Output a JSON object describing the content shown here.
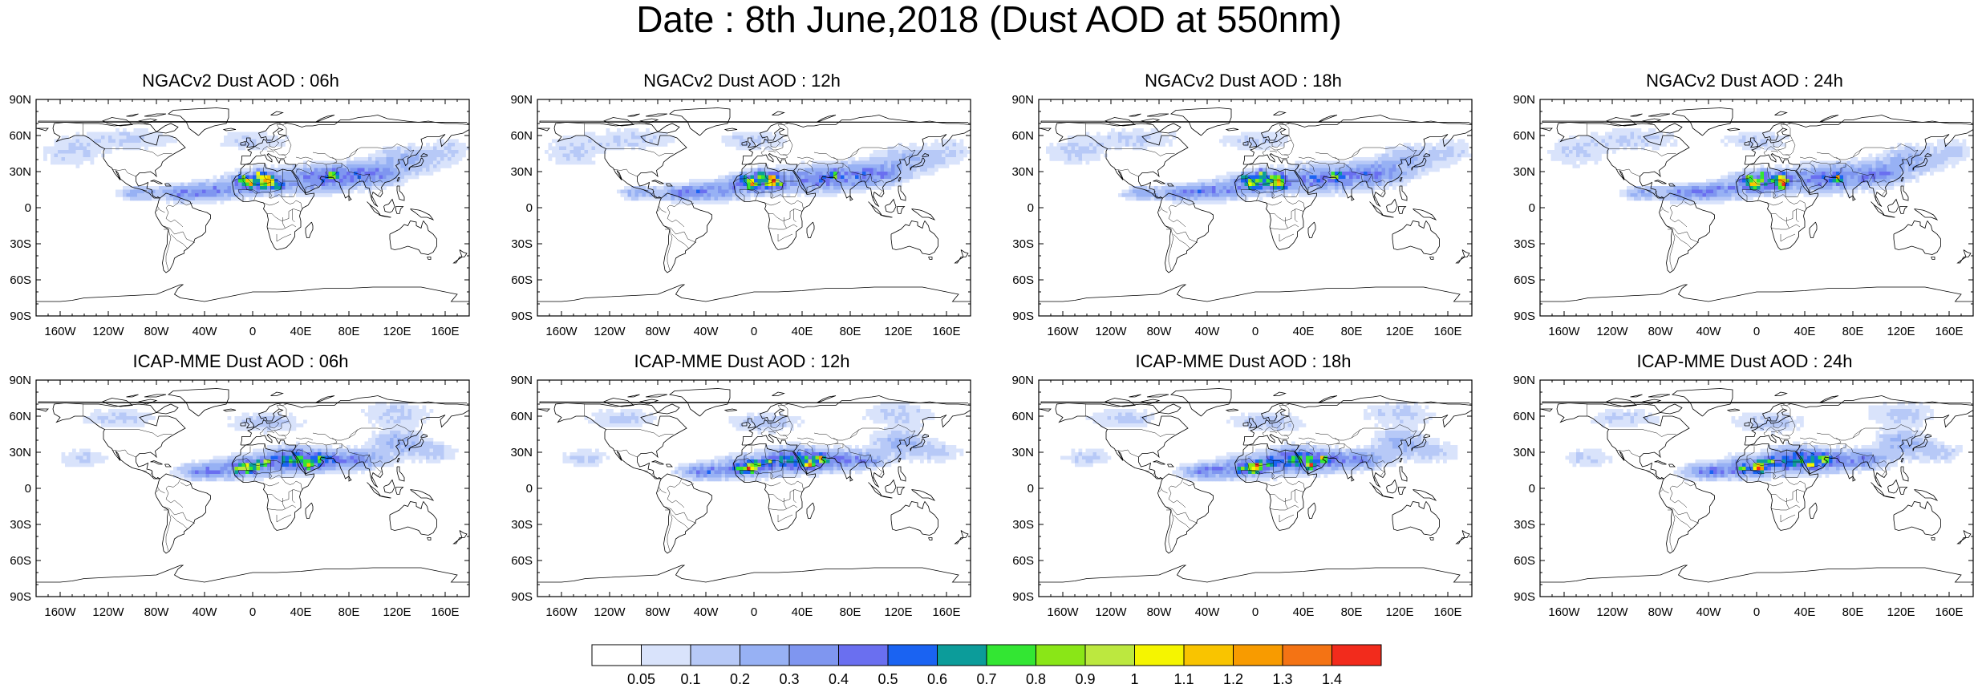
{
  "title": "Date : 8th June,2018 (Dust AOD at 550nm)",
  "lat_labels": [
    "90N",
    "60N",
    "30N",
    "0",
    "30S",
    "60S",
    "90S"
  ],
  "lon_labels": [
    "160W",
    "120W",
    "80W",
    "40W",
    "0",
    "40E",
    "80E",
    "120E",
    "160E"
  ],
  "panels": [
    {
      "title": "NGACv2 Dust AOD : 06h"
    },
    {
      "title": "NGACv2 Dust AOD : 12h"
    },
    {
      "title": "NGACv2 Dust AOD : 18h"
    },
    {
      "title": "NGACv2 Dust AOD : 24h"
    },
    {
      "title": "ICAP-MME Dust AOD : 06h"
    },
    {
      "title": "ICAP-MME Dust AOD : 12h"
    },
    {
      "title": "ICAP-MME Dust AOD : 18h"
    },
    {
      "title": "ICAP-MME Dust AOD : 24h"
    }
  ],
  "colorbar": {
    "labels": [
      "0.05",
      "0.1",
      "0.2",
      "0.3",
      "0.4",
      "0.5",
      "0.6",
      "0.7",
      "0.8",
      "0.9",
      "1",
      "1.1",
      "1.2",
      "1.3",
      "1.4"
    ],
    "colors": [
      "#ffffff",
      "#d9e3fb",
      "#b7c9f7",
      "#97b1f4",
      "#7f96f0",
      "#6a6ff0",
      "#1a63f2",
      "#0c9c9a",
      "#33e633",
      "#8ae617",
      "#bce83f",
      "#f5f500",
      "#f9c400",
      "#f89b00",
      "#f47314",
      "#f22b1c"
    ]
  },
  "map_colors": {
    "ocean": "#ffffff",
    "coast": "#000000"
  }
}
